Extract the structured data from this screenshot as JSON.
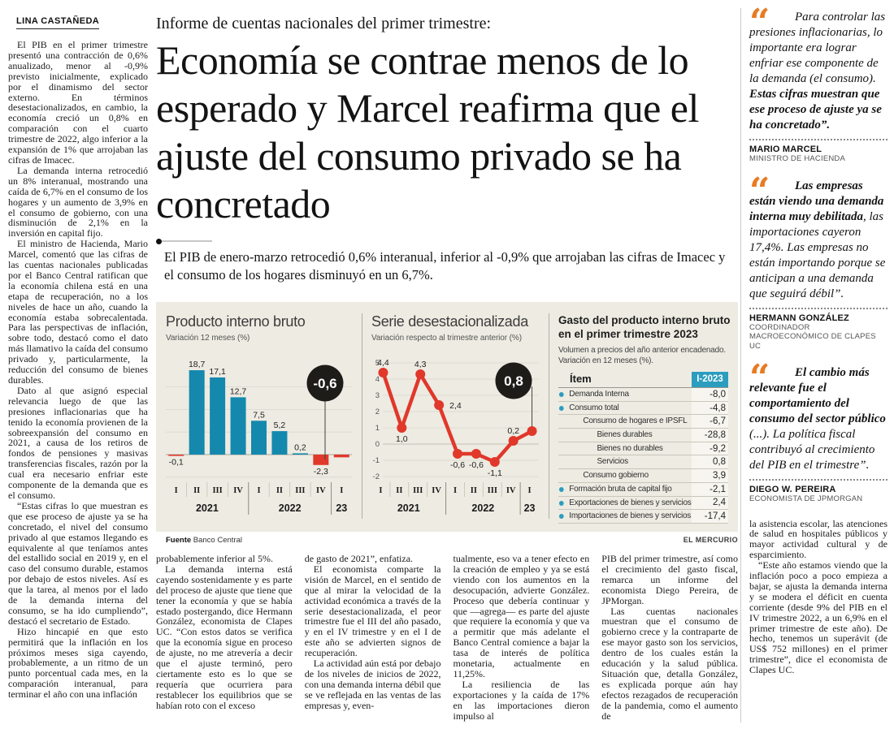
{
  "byline": "LINA CASTAÑEDA",
  "kicker": "Informe de cuentas nacionales del primer trimestre:",
  "headline": "Economía se contrae menos de lo esperado y Marcel reafirma que el ajuste del consumo privado se ha concretado",
  "subhead": "El PIB de enero-marzo retrocedió 0,6% interanual, inferior al -0,9% que arrojaban las cifras de Imacec y el consumo de los hogares disminuyó en un 6,7%.",
  "left_column": {
    "paragraphs": [
      "El PIB en el primer trimestre presentó una contracción de 0,6% anualizado, menor al -0,9% previsto inicialmente, explicado por el dinamismo del sector externo. En términos desestacionalizados, en cambio, la economía creció un 0,8% en comparación con el cuarto trimestre de 2022, algo inferior a la expansión de 1% que arrojaban las cifras de Imacec.",
      "La demanda interna retrocedió un 8% interanual, mostrando una caída de 6,7% en el consumo de los hogares y un aumento de 3,9% en el consumo de gobierno, con una disminución de 2,1% en la inversión en capital fijo.",
      "El ministro de Hacienda, Mario Marcel, comentó que las cifras de las cuentas nacionales publicadas por el Banco Central ratifican que la economía chilena está en una etapa de recuperación, no a los niveles de hace un año, cuando la economía estaba sobrecalentada. Para las perspectivas de inflación, sobre todo, destacó como el dato más llamativo la caída del consumo privado y, particularmente, la reducción del consumo de bienes durables.",
      "Dato al que asignó especial relevancia luego de que las presiones inflacionarias que ha tenido la economía provienen de la sobreexpansión del consumo en 2021, a causa de los retiros de fondos de pensiones y masivas transferencias fiscales, razón por la cual era necesario enfriar este componente de la demanda que es el consumo.",
      "“Estas cifras lo que muestran es que ese proceso de ajuste ya se ha concretado, el nivel del consumo privado al que estamos llegando es equivalente al que teníamos antes del estallido social en 2019 y, en el caso del consumo durable, estamos por debajo de estos niveles. Así es que la tarea, al menos por el lado de la demanda interna del consumo, se ha ido cumpliendo”, destacó el secretario de Estado.",
      "Hizo hincapié en que esto permitirá que la inflación en los próximos meses siga cayendo, probablemente, a un ritmo de un punto porcentual cada mes, en la comparación interanual, para terminar el año con una inflación"
    ]
  },
  "bottom_columns": [
    {
      "paragraphs": [
        "probablemente inferior al 5%.",
        "La demanda interna está cayendo sostenidamente y es parte del proceso de ajuste que tiene que tener la economía y que se había estado postergando, dice Hermann González, economista de Clapes UC. “Con estos datos se verifica que la economía sigue en proceso de ajuste, no me atrevería a decir que el ajuste terminó, pero ciertamente esto es lo que se requería que ocurriera para restablecer los equilibrios que se habían roto con el exceso"
      ]
    },
    {
      "paragraphs": [
        "de gasto de 2021”, enfatiza.",
        "El economista comparte la visión de Marcel, en el sentido de que al mirar la velocidad de la actividad económica a través de la serie desestacionalizada, el peor trimestre fue el III del año pasado, y en el IV trimestre y en el I de este año se advierten signos de recuperación.",
        "La actividad aún está por debajo de los niveles de inicios de 2022, con una demanda interna débil que se ve reflejada en las ventas de las empresas y, even-"
      ]
    },
    {
      "paragraphs": [
        "tualmente, eso va a tener efecto en la creación de empleo y ya se está viendo con los aumentos en la desocupación, advierte González. Proceso que debería continuar y que —agrega— es parte del ajuste que requiere la economía y que va a permitir que más adelante el Banco Central comience a bajar la tasa de interés de política monetaria, actualmente en 11,25%.",
        "La resiliencia de las exportaciones y la caída de 17% en las importaciones dieron impulso al"
      ]
    },
    {
      "paragraphs": [
        "PIB del primer trimestre, así como el crecimiento del gasto fiscal, remarca un informe del economista Diego Pereira, de JPMorgan.",
        "Las cuentas nacionales muestran que el consumo de gobierno crece y la contraparte de ese mayor gasto son los servicios, dentro de los cuales están la educación y la salud pública. Situación que, detalla González, es explicada porque aún hay efectos rezagados de recuperación de la pandemia, como el aumento de"
      ]
    }
  ],
  "right_column": {
    "quotes": [
      {
        "segments": [
          {
            "text": "Para controlar las presiones inflacionarias, lo importante era lograr enfriar ese componente de la demanda (el consumo). ",
            "bold": false
          },
          {
            "text": "Estas cifras muestran que ese proceso de ajuste ya se ha concretado”.",
            "bold": true
          }
        ],
        "name": "MARIO MARCEL",
        "role": "MINISTRO DE HACIENDA"
      },
      {
        "segments": [
          {
            "text": "Las empresas están viendo una demanda interna muy debilitada",
            "bold": true
          },
          {
            "text": ", las importaciones cayeron 17,4%. Las empresas no están importando porque se anticipan a una demanda que seguirá débil”.",
            "bold": false
          }
        ],
        "name": "HERMANN GONZÁLEZ",
        "role": "COORDINADOR MACROECONÓMICO DE CLAPES UC"
      },
      {
        "segments": [
          {
            "text": "El cambio más relevante fue el comportamiento del consumo del sector público",
            "bold": true
          },
          {
            "text": " (...). La política fiscal contribuyó al crecimiento del PIB en el trimestre”.",
            "bold": false
          }
        ],
        "name": "DIEGO W. PEREIRA",
        "role": "ECONOMISTA DE JPMORGAN"
      }
    ],
    "paragraphs": [
      "la asistencia escolar, las atenciones de salud en hospitales públicos y mayor actividad cultural y de esparcimiento.",
      "“Este año estamos viendo que la inflación poco a poco empieza a bajar, se ajusta la demanda interna y se modera el déficit en cuenta corriente (desde 9% del PIB en el IV trimestre 2022, a un 6,9% en el primer trimestre de este año). De hecho, tenemos un superávit (de US$ 752 millones) en el primer trimestre”, dice el economista de Clapes UC."
    ]
  },
  "infographic": {
    "source_label": "Fuente",
    "source": "Banco Central",
    "credit": "EL MERCURIO",
    "colors": {
      "bar_positive": "#1489ad",
      "negative_red": "#e0382b",
      "callout_bg": "#1d1c19",
      "table_header_bg": "#2b9dbf",
      "panel_bg": "#edebe2",
      "accent_orange": "#e87b22"
    }
  },
  "chart_data": [
    {
      "type": "bar",
      "title": "Producto interno bruto",
      "subtitle": "Variación 12 meses (%)",
      "categories": [
        "I",
        "II",
        "III",
        "IV",
        "I",
        "II",
        "III",
        "IV",
        "I"
      ],
      "year_groups": [
        {
          "label": "2021",
          "count": 4
        },
        {
          "label": "2022",
          "count": 4
        },
        {
          "label": "23",
          "count": 1
        }
      ],
      "values": [
        -0.1,
        18.7,
        17.1,
        12.7,
        7.5,
        5.2,
        0.2,
        -2.3,
        -0.6
      ],
      "value_labels": [
        "-0,1",
        "18,7",
        "17,1",
        "12,7",
        "7,5",
        "5,2",
        "0,2",
        "-2,3",
        ""
      ],
      "callout_label": "-0,6",
      "ylim": [
        -5,
        20
      ],
      "gridlines": [
        15,
        10,
        5,
        0,
        -5
      ],
      "source": "Banco Central"
    },
    {
      "type": "line",
      "title": "Serie desestacionalizada",
      "subtitle": "Variación respecto al trimestre anterior (%)",
      "categories": [
        "I",
        "II",
        "III",
        "IV",
        "I",
        "II",
        "III",
        "IV",
        "I"
      ],
      "year_groups": [
        {
          "label": "2021",
          "count": 4
        },
        {
          "label": "2022",
          "count": 4
        },
        {
          "label": "23",
          "count": 1
        }
      ],
      "values": [
        4.4,
        1.0,
        4.3,
        2.4,
        -0.6,
        -0.6,
        -1.1,
        0.2,
        0.8
      ],
      "value_labels": [
        "4,4",
        "1,0",
        "4,3",
        "2,4",
        "-0,6",
        "-0,6",
        "-1,1",
        "0,2",
        ""
      ],
      "label_pos": [
        "above",
        "below",
        "above",
        "right",
        "below",
        "below",
        "below",
        "above",
        "none"
      ],
      "yticks": [
        5,
        4,
        3,
        2,
        1,
        0,
        -1,
        -2
      ],
      "ylim": [
        -2,
        5
      ],
      "callout_label": "0,8",
      "source": "Banco Central"
    },
    {
      "type": "table",
      "title_lines": [
        "Gasto del producto interno bruto",
        "en el primer trimestre 2023"
      ],
      "subtitle_lines": [
        "Volumen a precios del año anterior encadenado.",
        "Variación en 12 meses (%)."
      ],
      "col_headers": [
        "Ítem",
        "I-2023"
      ],
      "rows": [
        {
          "label": "Demanda Interna",
          "value": "-8,0",
          "indent": 0,
          "bullet": true
        },
        {
          "label": "Consumo total",
          "value": "-4,8",
          "indent": 0,
          "bullet": true
        },
        {
          "label": "Consumo de hogares e IPSFL",
          "value": "-6,7",
          "indent": 1,
          "bullet": false
        },
        {
          "label": "Bienes durables",
          "value": "-28,8",
          "indent": 2,
          "bullet": false
        },
        {
          "label": "Bienes no durables",
          "value": "-9,2",
          "indent": 2,
          "bullet": false
        },
        {
          "label": "Servicios",
          "value": "0,8",
          "indent": 2,
          "bullet": false
        },
        {
          "label": "Consumo gobierno",
          "value": "3,9",
          "indent": 1,
          "bullet": false
        },
        {
          "label": "Formación bruta de capital fijo",
          "value": "-2,1",
          "indent": 0,
          "bullet": true
        },
        {
          "label": "Exportaciones de bienes y servicios",
          "value": "2,4",
          "indent": 0,
          "bullet": true
        },
        {
          "label": "Importaciones de bienes y servicios",
          "value": "-17,4",
          "indent": 0,
          "bullet": true
        }
      ]
    }
  ]
}
